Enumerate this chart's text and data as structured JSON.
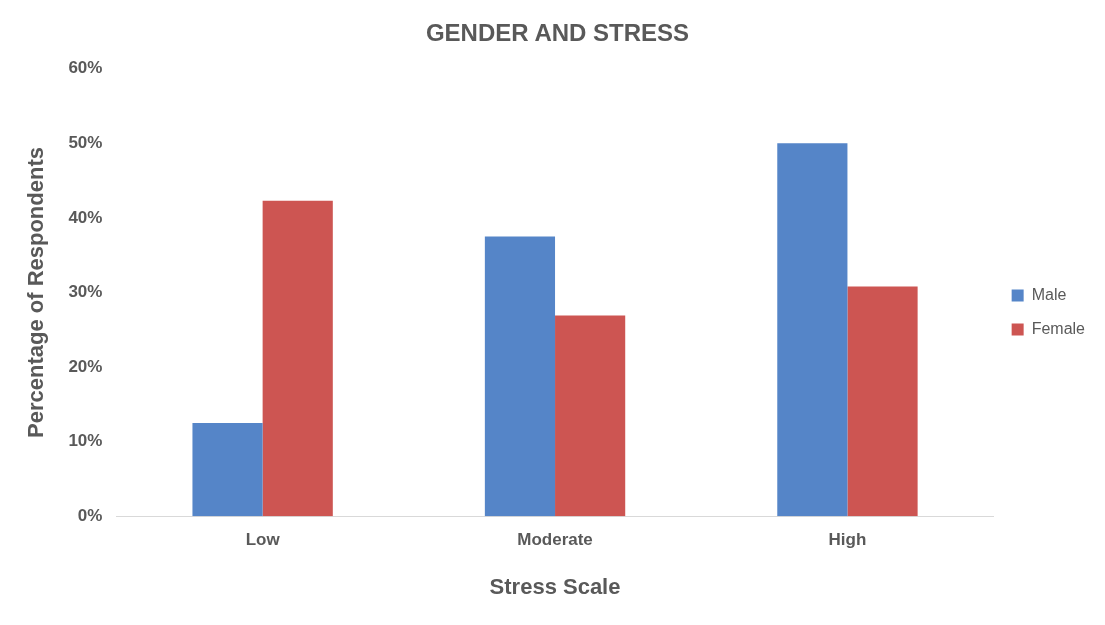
{
  "chart_data": {
    "type": "bar",
    "title": "GENDER AND STRESS",
    "xlabel": "Stress Scale",
    "ylabel": "Percentage of Respondents",
    "categories": [
      "Low",
      "Moderate",
      "High"
    ],
    "series": [
      {
        "name": "Male",
        "color": "#5585c8",
        "values": [
          12.5,
          37.5,
          50
        ]
      },
      {
        "name": "Female",
        "color": "#cd5552",
        "values": [
          42.3,
          26.9,
          30.8
        ]
      }
    ],
    "ylim": [
      0,
      60
    ],
    "yticks": [
      {
        "value": 0,
        "label": "0%"
      },
      {
        "value": 10,
        "label": "10%"
      },
      {
        "value": 20,
        "label": "20%"
      },
      {
        "value": 30,
        "label": "30%"
      },
      {
        "value": 40,
        "label": "40%"
      },
      {
        "value": 50,
        "label": "50%"
      },
      {
        "value": 60,
        "label": "60%"
      }
    ],
    "grid": false,
    "legend": "right"
  }
}
